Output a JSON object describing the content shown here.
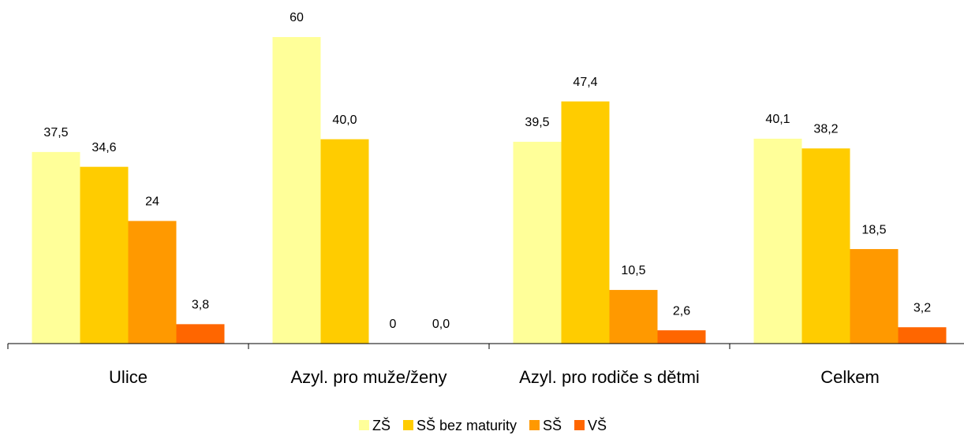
{
  "chart_data": {
    "type": "bar",
    "categories": [
      "Ulice",
      "Azyl. pro muže/ženy",
      "Azyl. pro rodiče s dětmi",
      "Celkem"
    ],
    "series": [
      {
        "name": "ZŠ",
        "color": "#ffff99",
        "values": [
          37.5,
          60,
          39.5,
          40.1
        ],
        "value_labels": [
          "37,5",
          "60",
          "39,5",
          "40,1"
        ]
      },
      {
        "name": "SŠ bez maturity",
        "color": "#ffcc00",
        "values": [
          34.6,
          40.0,
          47.4,
          38.2
        ],
        "value_labels": [
          "34,6",
          "40,0",
          "47,4",
          "38,2"
        ]
      },
      {
        "name": "SŠ",
        "color": "#ff9900",
        "values": [
          24,
          0,
          10.5,
          18.5
        ],
        "value_labels": [
          "24",
          "0",
          "10,5",
          "18,5"
        ]
      },
      {
        "name": "VŠ",
        "color": "#ff6600",
        "values": [
          3.8,
          0.0,
          2.6,
          3.2
        ],
        "value_labels": [
          "3,8",
          "0,0",
          "2,6",
          "3,2"
        ]
      }
    ],
    "ylim": [
      0,
      60
    ],
    "legend": "bottom"
  }
}
